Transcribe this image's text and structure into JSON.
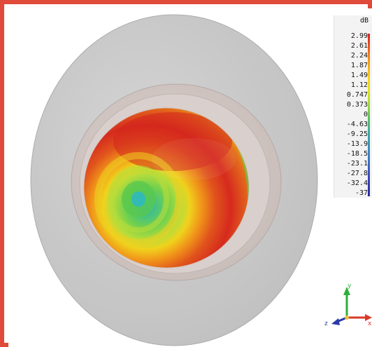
{
  "colorbar": {
    "unit": "dB",
    "labels": [
      "2.99",
      "2.61",
      "2.24",
      "1.87",
      "1.49",
      "1.12",
      "0.747",
      "0.373",
      "0",
      "-4.63",
      "-9.25",
      "-13.9",
      "-18.5",
      "-23.1",
      "-27.8",
      "-32.4",
      "-37"
    ]
  },
  "axes": {
    "y": "y",
    "z": "z",
    "x": "x"
  },
  "colors": {
    "frame": "#e04a3a",
    "disk": "#c9c8c8",
    "ring": "#d7cbc7",
    "hot": "#d62020",
    "mid": "#f0b418",
    "cool": "#4dc04a",
    "center": "#3fbfae"
  }
}
